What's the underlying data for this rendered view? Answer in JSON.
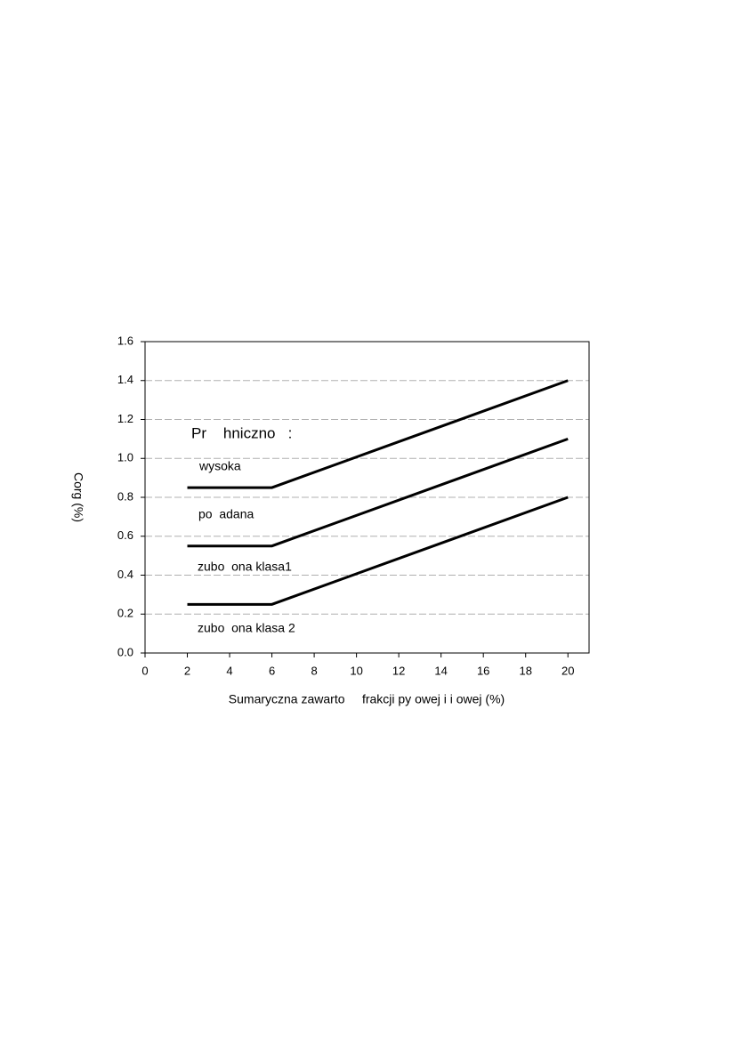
{
  "chart_data": {
    "type": "line",
    "x_label": "Sumaryczna zawarto     frakcji py owej i i owej (%)",
    "y_label": "Corg (%)",
    "annotations": [
      "Pr    hniczno   :",
      "wysoka",
      "po  adana",
      "zubo  ona klasa1",
      "zubo  ona klasa 2"
    ],
    "x": [
      2,
      6,
      20
    ],
    "series": [
      {
        "color": "#000000",
        "values": [
          0.85,
          0.85,
          1.4
        ]
      },
      {
        "color": "#000000",
        "values": [
          0.55,
          0.55,
          1.1
        ]
      },
      {
        "color": "#000000",
        "values": [
          0.25,
          0.25,
          0.8
        ]
      }
    ],
    "xlim": [
      0,
      21
    ],
    "xticks": [
      0,
      2,
      4,
      6,
      8,
      10,
      12,
      14,
      16,
      18,
      20
    ],
    "ylim": [
      0,
      1.6
    ],
    "yticks": [
      {
        "value": 0,
        "label": "0.0"
      },
      0.2,
      0.4,
      0.6,
      0.8,
      {
        "value": 1,
        "label": "1.0"
      },
      1.2,
      1.4,
      1.6
    ],
    "grid": true
  }
}
